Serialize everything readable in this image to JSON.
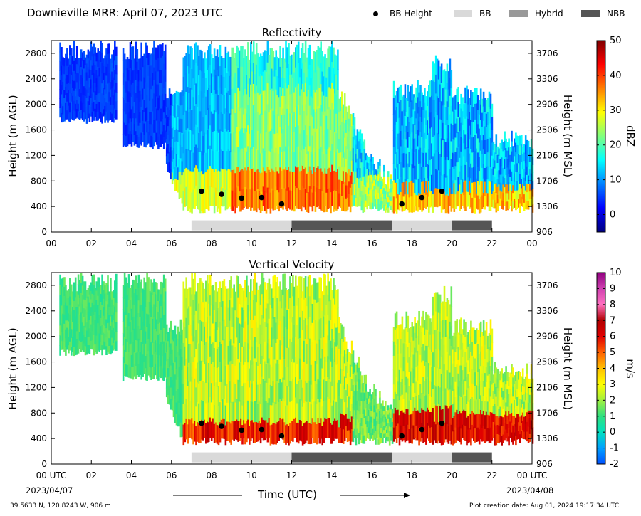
{
  "title": "Downieville MRR:  April 07, 2023 UTC",
  "legend": {
    "bb_height": "BB Height",
    "bb": "BB",
    "hybrid": "Hybrid",
    "nbb": "NBB"
  },
  "colors": {
    "bb": "#d9d9d9",
    "hybrid": "#999999",
    "nbb": "#555555",
    "marker": "#000000"
  },
  "x_axis": {
    "label": "Time (UTC)",
    "start_date": "2023/04/07",
    "end_date": "2023/04/08",
    "ticks_top": [
      "00",
      "02",
      "04",
      "06",
      "08",
      "10",
      "12",
      "14",
      "16",
      "18",
      "20",
      "22",
      "00"
    ],
    "ticks_bottom": [
      "00 UTC",
      "02",
      "04",
      "06",
      "08",
      "10",
      "12",
      "14",
      "16",
      "18",
      "20",
      "22",
      "00 UTC"
    ]
  },
  "footer": {
    "coords": "39.5633 N, 120.8243 W, 906 m",
    "creation": "Plot creation date: Aug 01, 2024 19:17:34 UTC"
  },
  "chart_data": [
    {
      "type": "heatmap",
      "title": "Reflectivity",
      "ylabel": "Height (m AGL)",
      "ylabel_right": "Height (m MSL)",
      "xlim_hours": [
        0,
        24
      ],
      "ylim": [
        0,
        3000
      ],
      "yticks_left": [
        "0",
        "400",
        "800",
        "1200",
        "1600",
        "2000",
        "2400",
        "2800"
      ],
      "yticks_right": [
        "906",
        "1306",
        "1706",
        "2106",
        "2506",
        "2906",
        "3306",
        "3706"
      ],
      "colorbar": {
        "label": "dBZ",
        "range": [
          -5,
          50
        ],
        "ticks": [
          "0",
          "10",
          "20",
          "30",
          "40",
          "50"
        ],
        "colors": [
          "#00007f",
          "#0000ff",
          "#007fff",
          "#00ffff",
          "#7fff7f",
          "#ffff00",
          "#ff7f00",
          "#ff0000",
          "#7f0000"
        ]
      },
      "bb_height_points": [
        {
          "hour": 7.5,
          "height": 640
        },
        {
          "hour": 8.5,
          "height": 590
        },
        {
          "hour": 9.5,
          "height": 530
        },
        {
          "hour": 10.5,
          "height": 540
        },
        {
          "hour": 11.5,
          "height": 440
        },
        {
          "hour": 17.5,
          "height": 440
        },
        {
          "hour": 18.5,
          "height": 540
        },
        {
          "hour": 19.5,
          "height": 640
        }
      ],
      "classification": [
        {
          "start": 7,
          "end": 12,
          "type": "BB"
        },
        {
          "start": 12,
          "end": 17,
          "type": "NBB"
        },
        {
          "start": 17,
          "end": 20,
          "type": "BB"
        },
        {
          "start": 20,
          "end": 22,
          "type": "NBB"
        }
      ]
    },
    {
      "type": "heatmap",
      "title": "Vertical Velocity",
      "ylabel": "Height (m AGL)",
      "ylabel_right": "Height (m MSL)",
      "xlim_hours": [
        0,
        24
      ],
      "ylim": [
        0,
        3000
      ],
      "yticks_left": [
        "0",
        "400",
        "800",
        "1200",
        "1600",
        "2000",
        "2400",
        "2800"
      ],
      "yticks_right": [
        "906",
        "1306",
        "1706",
        "2106",
        "2506",
        "2906",
        "3306",
        "3706"
      ],
      "colorbar": {
        "label": "m/s",
        "range": [
          -2,
          10
        ],
        "ticks": [
          "-2",
          "-1",
          "0",
          "1",
          "2",
          "3",
          "4",
          "5",
          "6",
          "7",
          "8",
          "9",
          "10"
        ],
        "colors": [
          "#0050ff",
          "#00a0ff",
          "#00e0c0",
          "#30e080",
          "#a0f040",
          "#ffff00",
          "#ffc000",
          "#ff6000",
          "#e00000",
          "#b00000",
          "#ff70c0",
          "#d040b0",
          "#900080"
        ]
      },
      "bb_height_points": [
        {
          "hour": 7.5,
          "height": 640
        },
        {
          "hour": 8.5,
          "height": 590
        },
        {
          "hour": 9.5,
          "height": 530
        },
        {
          "hour": 10.5,
          "height": 540
        },
        {
          "hour": 11.5,
          "height": 440
        },
        {
          "hour": 17.5,
          "height": 440
        },
        {
          "hour": 18.5,
          "height": 540
        },
        {
          "hour": 19.5,
          "height": 640
        }
      ],
      "classification": [
        {
          "start": 7,
          "end": 12,
          "type": "BB"
        },
        {
          "start": 12,
          "end": 17,
          "type": "NBB"
        },
        {
          "start": 17,
          "end": 20,
          "type": "BB"
        },
        {
          "start": 20,
          "end": 22,
          "type": "NBB"
        }
      ]
    }
  ]
}
